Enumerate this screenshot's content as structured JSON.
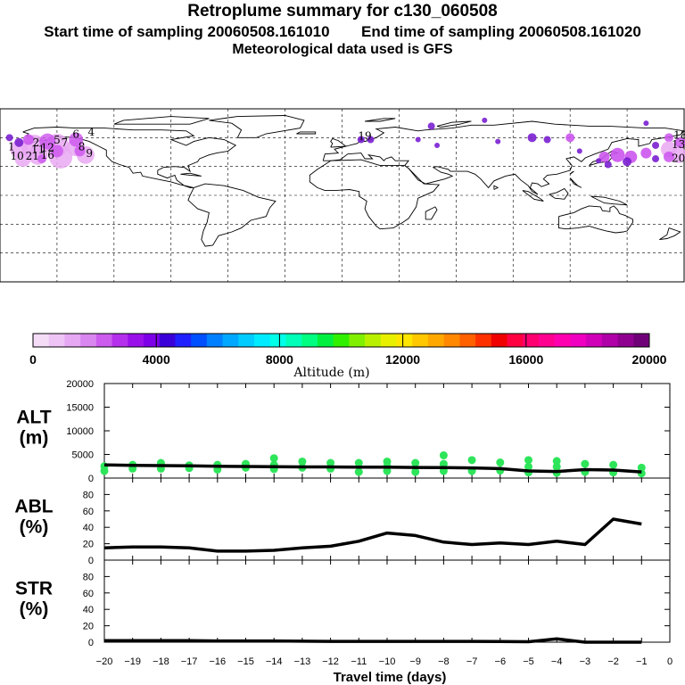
{
  "header": {
    "title": "Retroplume summary for c130_060508",
    "start_label": "Start time of sampling",
    "start_time": "20060508.161010",
    "end_label": "End time of sampling",
    "end_time": "20060508.161020",
    "met_data": "Meteorological data used is GFS"
  },
  "colors": {
    "background": "#ffffff",
    "line": "#000000",
    "altitude_marker": "#2ee55a",
    "plume_light": "#e9a8f2",
    "plume_mid": "#cc55ee",
    "plume_dark": "#7a1fd0"
  },
  "colorbar": {
    "title": "Altitude (m)",
    "ticks": [
      "0",
      "4000",
      "8000",
      "12000",
      "16000",
      "20000"
    ],
    "palette": [
      "#f4dcf7",
      "#eec3f5",
      "#e6a7f3",
      "#da86f1",
      "#cb5cee",
      "#b430ec",
      "#9a10ea",
      "#7d00e8",
      "#3a00d9",
      "#2020ff",
      "#0050ff",
      "#0080ff",
      "#00a8ff",
      "#00ccff",
      "#00ebff",
      "#00ffe8",
      "#00ffb8",
      "#00ff80",
      "#00f040",
      "#30f000",
      "#80f000",
      "#b8f000",
      "#e8f000",
      "#ffe600",
      "#ffc800",
      "#ffa800",
      "#ff8800",
      "#ff6000",
      "#ff3000",
      "#f00000",
      "#ff0040",
      "#ff0070",
      "#ff0090",
      "#ff00b0",
      "#f000c0",
      "#d000b8",
      "#b000a8",
      "#900090",
      "#700078"
    ]
  },
  "map": {
    "name": "World map with retroplume locations",
    "labels": [
      {
        "text": "1",
        "lon": -174,
        "lat": 47
      },
      {
        "text": "2",
        "lon": -161,
        "lat": 51
      },
      {
        "text": "5",
        "lon": -150,
        "lat": 54
      },
      {
        "text": "6",
        "lon": -140,
        "lat": 60
      },
      {
        "text": "4",
        "lon": -132,
        "lat": 62
      },
      {
        "text": "7",
        "lon": -146,
        "lat": 51
      },
      {
        "text": "11",
        "lon": -160,
        "lat": 44
      },
      {
        "text": "12",
        "lon": -155,
        "lat": 46
      },
      {
        "text": "8",
        "lon": -137,
        "lat": 47
      },
      {
        "text": "10",
        "lon": -171,
        "lat": 37
      },
      {
        "text": "21",
        "lon": -163,
        "lat": 37
      },
      {
        "text": "16",
        "lon": -155,
        "lat": 38
      },
      {
        "text": "9",
        "lon": -133,
        "lat": 40
      },
      {
        "text": "13",
        "lon": 177,
        "lat": 49
      },
      {
        "text": "20",
        "lon": 177,
        "lat": 35
      },
      {
        "text": "18",
        "lon": 178,
        "lat": 59
      },
      {
        "text": "19",
        "lon": 12,
        "lat": 58
      }
    ]
  },
  "chart_data": [
    {
      "type": "line",
      "name": "ALT",
      "label_line1": "ALT",
      "label_line2": "(m)",
      "ylim": [
        0,
        20000
      ],
      "yticks": [
        "0",
        "5000",
        "10000",
        "15000",
        "20000"
      ],
      "x": [
        -20,
        -19,
        -18,
        -17,
        -16,
        -15,
        -14,
        -13,
        -12,
        -11,
        -10,
        -9,
        -8,
        -7,
        -6,
        -5,
        -4,
        -3,
        -2,
        -1
      ],
      "median": [
        2800,
        2700,
        2650,
        2600,
        2500,
        2450,
        2400,
        2350,
        2350,
        2300,
        2300,
        2250,
        2200,
        2150,
        2000,
        1500,
        1400,
        1800,
        1700,
        1300
      ],
      "scatter": [
        {
          "x": -20,
          "y": 2500
        },
        {
          "x": -20,
          "y": 1500
        },
        {
          "x": -19,
          "y": 2800
        },
        {
          "x": -19,
          "y": 2000
        },
        {
          "x": -18,
          "y": 3200
        },
        {
          "x": -18,
          "y": 2000
        },
        {
          "x": -17,
          "y": 2700
        },
        {
          "x": -17,
          "y": 2100
        },
        {
          "x": -16,
          "y": 2800
        },
        {
          "x": -16,
          "y": 1800
        },
        {
          "x": -15,
          "y": 3000
        },
        {
          "x": -15,
          "y": 2200
        },
        {
          "x": -14,
          "y": 4200
        },
        {
          "x": -14,
          "y": 2800
        },
        {
          "x": -14,
          "y": 1900
        },
        {
          "x": -13,
          "y": 3500
        },
        {
          "x": -13,
          "y": 2200
        },
        {
          "x": -12,
          "y": 3200
        },
        {
          "x": -12,
          "y": 2000
        },
        {
          "x": -11,
          "y": 3200
        },
        {
          "x": -11,
          "y": 1300
        },
        {
          "x": -10,
          "y": 3500
        },
        {
          "x": -10,
          "y": 2500
        },
        {
          "x": -10,
          "y": 1500
        },
        {
          "x": -9,
          "y": 3200
        },
        {
          "x": -9,
          "y": 1300
        },
        {
          "x": -8,
          "y": 4800
        },
        {
          "x": -8,
          "y": 3000
        },
        {
          "x": -8,
          "y": 1500
        },
        {
          "x": -7,
          "y": 3800
        },
        {
          "x": -7,
          "y": 1500
        },
        {
          "x": -6,
          "y": 3300
        },
        {
          "x": -6,
          "y": 1600
        },
        {
          "x": -5,
          "y": 3800
        },
        {
          "x": -5,
          "y": 2400
        },
        {
          "x": -5,
          "y": 1200
        },
        {
          "x": -4,
          "y": 3600
        },
        {
          "x": -4,
          "y": 2400
        },
        {
          "x": -4,
          "y": 1100
        },
        {
          "x": -3,
          "y": 3000
        },
        {
          "x": -3,
          "y": 1300
        },
        {
          "x": -2,
          "y": 2800
        },
        {
          "x": -2,
          "y": 1200
        },
        {
          "x": -1,
          "y": 2200
        },
        {
          "x": -1,
          "y": 1000
        }
      ]
    },
    {
      "type": "line",
      "name": "ABL",
      "label_line1": "ABL",
      "label_line2": "(%)",
      "ylim": [
        0,
        100
      ],
      "yticks": [
        "0",
        "20",
        "40",
        "60",
        "80"
      ],
      "x": [
        -20,
        -19,
        -18,
        -17,
        -16,
        -15,
        -14,
        -13,
        -12,
        -11,
        -10,
        -9,
        -8,
        -7,
        -6,
        -5,
        -4,
        -3,
        -2,
        -1
      ],
      "values": [
        15,
        16,
        16,
        15,
        11,
        11,
        12,
        15,
        17,
        23,
        33,
        30,
        22,
        19,
        21,
        19,
        23,
        19,
        50,
        44
      ]
    },
    {
      "type": "line",
      "name": "STR",
      "label_line1": "STR",
      "label_line2": "(%)",
      "ylim": [
        0,
        100
      ],
      "yticks": [
        "0",
        "20",
        "40",
        "60",
        "80"
      ],
      "x": [
        -20,
        -19,
        -18,
        -17,
        -16,
        -15,
        -14,
        -13,
        -12,
        -11,
        -10,
        -9,
        -8,
        -7,
        -6,
        -5,
        -4,
        -3,
        -2,
        -1
      ],
      "values": [
        2,
        2,
        2,
        2,
        1.5,
        1.5,
        1.5,
        1.2,
        1,
        1,
        1,
        1,
        1,
        1,
        0.8,
        0.5,
        4,
        0,
        0,
        0
      ]
    }
  ],
  "xaxis": {
    "title": "Travel time (days)",
    "ticks": [
      "−20",
      "−19",
      "−18",
      "−17",
      "−16",
      "−15",
      "−14",
      "−13",
      "−12",
      "−11",
      "−10",
      "−9",
      "−8",
      "−7",
      "−6",
      "−5",
      "−4",
      "−3",
      "−2",
      "−1",
      "0"
    ],
    "xlim": [
      -20,
      0
    ]
  }
}
